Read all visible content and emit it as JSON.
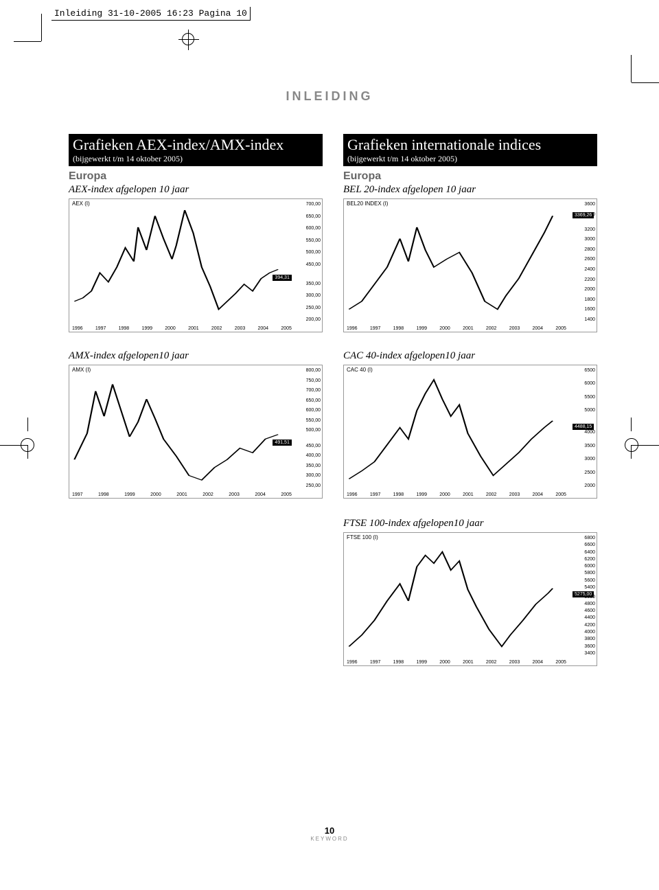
{
  "header_bar": "Inleiding  31-10-2005  16:23  Pagina 10",
  "page_title": "INLEIDING",
  "left_box": {
    "title": "Grafieken AEX-index/AMX-index",
    "sub": "(bijgewerkt t/m 14 oktober 2005)",
    "region": "Europa"
  },
  "right_box": {
    "title": "Grafieken internationale indices",
    "sub": "(bijgewerkt t/m 14 oktober 2005)",
    "region": "Europa"
  },
  "charts": {
    "aex": {
      "title": "AEX-index afgelopen 10 jaar",
      "label": "AEX (I)",
      "type": "line",
      "ylim": [
        200,
        700
      ],
      "yticks": [
        "700,00",
        "650,00",
        "600,00",
        "550,00",
        "500,00",
        "450,00",
        "",
        "350,00",
        "300,00",
        "250,00",
        "200,00"
      ],
      "xticks": [
        "1996",
        "1997",
        "1998",
        "1999",
        "2000",
        "2001",
        "2002",
        "2003",
        "2004",
        "2005"
      ],
      "marker": {
        "value": "394,31",
        "right_pct": 12,
        "top_pct": 57
      },
      "line_color": "#000000",
      "background_color": "#ffffff",
      "points": [
        [
          0,
          85
        ],
        [
          4,
          82
        ],
        [
          8,
          76
        ],
        [
          12,
          60
        ],
        [
          16,
          68
        ],
        [
          20,
          55
        ],
        [
          24,
          38
        ],
        [
          28,
          50
        ],
        [
          30,
          20
        ],
        [
          34,
          40
        ],
        [
          38,
          10
        ],
        [
          42,
          30
        ],
        [
          46,
          48
        ],
        [
          48,
          36
        ],
        [
          52,
          5
        ],
        [
          56,
          25
        ],
        [
          60,
          55
        ],
        [
          64,
          72
        ],
        [
          68,
          92
        ],
        [
          72,
          85
        ],
        [
          76,
          78
        ],
        [
          80,
          70
        ],
        [
          84,
          76
        ],
        [
          88,
          65
        ],
        [
          92,
          60
        ],
        [
          96,
          57
        ]
      ]
    },
    "bel20": {
      "title": "BEL 20-index  afgelopen 10 jaar",
      "label": "BEL20 INDEX (I)",
      "type": "line",
      "ylim": [
        1400,
        3600
      ],
      "yticks": [
        "3600",
        "3400",
        "",
        "3200",
        "3000",
        "2800",
        "2600",
        "2400",
        "2200",
        "2000",
        "1800",
        "1600",
        "1400"
      ],
      "xticks": [
        "1996",
        "1997",
        "1998",
        "1999",
        "2000",
        "2001",
        "2002",
        "2003",
        "2004",
        "2005"
      ],
      "marker": {
        "value": "3369,26",
        "right_pct": 1,
        "top_pct": 10
      },
      "line_color": "#000000",
      "background_color": "#ffffff",
      "points": [
        [
          0,
          92
        ],
        [
          6,
          85
        ],
        [
          12,
          70
        ],
        [
          18,
          55
        ],
        [
          24,
          30
        ],
        [
          28,
          50
        ],
        [
          32,
          20
        ],
        [
          36,
          40
        ],
        [
          40,
          55
        ],
        [
          46,
          48
        ],
        [
          52,
          42
        ],
        [
          58,
          60
        ],
        [
          64,
          85
        ],
        [
          70,
          92
        ],
        [
          74,
          80
        ],
        [
          80,
          65
        ],
        [
          86,
          45
        ],
        [
          92,
          25
        ],
        [
          96,
          10
        ]
      ]
    },
    "amx": {
      "title": "AMX-index afgelopen10 jaar",
      "label": "AMX (I)",
      "type": "line",
      "ylim": [
        250,
        800
      ],
      "yticks": [
        "800,00",
        "750,00",
        "700,00",
        "650,00",
        "600,00",
        "550,00",
        "500,00",
        "",
        "450,00",
        "400,00",
        "350,00",
        "300,00",
        "250,00"
      ],
      "xticks": [
        "1997",
        "1998",
        "1999",
        "2000",
        "2001",
        "2002",
        "2003",
        "2004",
        "2005"
      ],
      "marker": {
        "value": "491,51",
        "right_pct": 12,
        "top_pct": 56
      },
      "line_color": "#000000",
      "background_color": "#ffffff",
      "points": [
        [
          0,
          78
        ],
        [
          6,
          55
        ],
        [
          10,
          18
        ],
        [
          14,
          40
        ],
        [
          18,
          12
        ],
        [
          22,
          35
        ],
        [
          26,
          58
        ],
        [
          30,
          45
        ],
        [
          34,
          25
        ],
        [
          38,
          42
        ],
        [
          42,
          60
        ],
        [
          48,
          75
        ],
        [
          54,
          92
        ],
        [
          60,
          96
        ],
        [
          66,
          85
        ],
        [
          72,
          78
        ],
        [
          78,
          68
        ],
        [
          84,
          72
        ],
        [
          90,
          60
        ],
        [
          96,
          56
        ]
      ]
    },
    "cac40": {
      "title": "CAC 40-index afgelopen10 jaar",
      "label": "CAC 40 (I)",
      "type": "line",
      "ylim": [
        2000,
        6500
      ],
      "yticks": [
        "6500",
        "6000",
        "5500",
        "5000",
        "",
        "4000",
        "3500",
        "3000",
        "2500",
        "2000"
      ],
      "xticks": [
        "1996",
        "1997",
        "1998",
        "1999",
        "2000",
        "2001",
        "2002",
        "2003",
        "2004",
        "2005"
      ],
      "marker": {
        "value": "4488,15",
        "right_pct": 1,
        "top_pct": 44
      },
      "line_color": "#000000",
      "background_color": "#ffffff",
      "points": [
        [
          0,
          95
        ],
        [
          6,
          88
        ],
        [
          12,
          80
        ],
        [
          18,
          65
        ],
        [
          24,
          50
        ],
        [
          28,
          60
        ],
        [
          32,
          35
        ],
        [
          36,
          20
        ],
        [
          40,
          8
        ],
        [
          44,
          25
        ],
        [
          48,
          40
        ],
        [
          52,
          30
        ],
        [
          56,
          55
        ],
        [
          62,
          75
        ],
        [
          68,
          92
        ],
        [
          74,
          82
        ],
        [
          80,
          72
        ],
        [
          86,
          60
        ],
        [
          92,
          50
        ],
        [
          96,
          44
        ]
      ]
    },
    "ftse100": {
      "title": "FTSE  100-index afgelopen10 jaar",
      "label": "FTSE 100 (I)",
      "type": "line",
      "ylim": [
        3400,
        6800
      ],
      "yticks": [
        "6800",
        "6600",
        "6400",
        "6200",
        "6000",
        "5800",
        "5600",
        "5400",
        "",
        "5000",
        "4800",
        "4600",
        "4400",
        "4200",
        "4000",
        "3800",
        "3600",
        "3400"
      ],
      "xticks": [
        "1996",
        "1997",
        "1998",
        "1999",
        "2000",
        "2001",
        "2002",
        "2003",
        "2004",
        "2005"
      ],
      "marker": {
        "value": "5275,00",
        "right_pct": 1,
        "top_pct": 44
      },
      "line_color": "#000000",
      "background_color": "#ffffff",
      "points": [
        [
          0,
          95
        ],
        [
          6,
          85
        ],
        [
          12,
          72
        ],
        [
          18,
          55
        ],
        [
          24,
          40
        ],
        [
          28,
          55
        ],
        [
          32,
          25
        ],
        [
          36,
          15
        ],
        [
          40,
          22
        ],
        [
          44,
          12
        ],
        [
          48,
          28
        ],
        [
          52,
          20
        ],
        [
          56,
          45
        ],
        [
          60,
          60
        ],
        [
          66,
          80
        ],
        [
          72,
          95
        ],
        [
          76,
          85
        ],
        [
          82,
          72
        ],
        [
          88,
          58
        ],
        [
          94,
          48
        ],
        [
          96,
          44
        ]
      ]
    }
  },
  "footer": {
    "page": "10",
    "keyword": "KEYWORD"
  }
}
